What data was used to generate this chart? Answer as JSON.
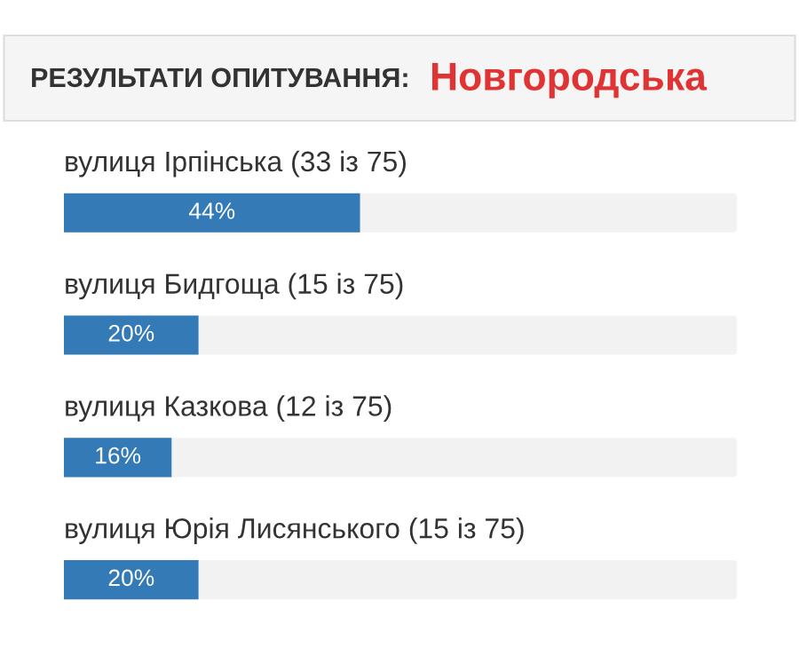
{
  "chart_data": {
    "type": "bar",
    "orientation": "horizontal",
    "title": "РЕЗУЛЬТАТИ ОПИТУВАННЯ:",
    "subtitle": "Новгородська",
    "categories": [
      "вулиця Ірпінська (33 із 75)",
      "вулиця Бидгоща (15 із 75)",
      "вулиця Казкова (12 із 75)",
      "вулиця Юрія Лисянського (15 із 75)"
    ],
    "values": [
      44,
      20,
      16,
      20
    ],
    "value_labels": [
      "44%",
      "20%",
      "16%",
      "20%"
    ],
    "color": "#337ab7",
    "xlim": [
      0,
      100
    ]
  }
}
